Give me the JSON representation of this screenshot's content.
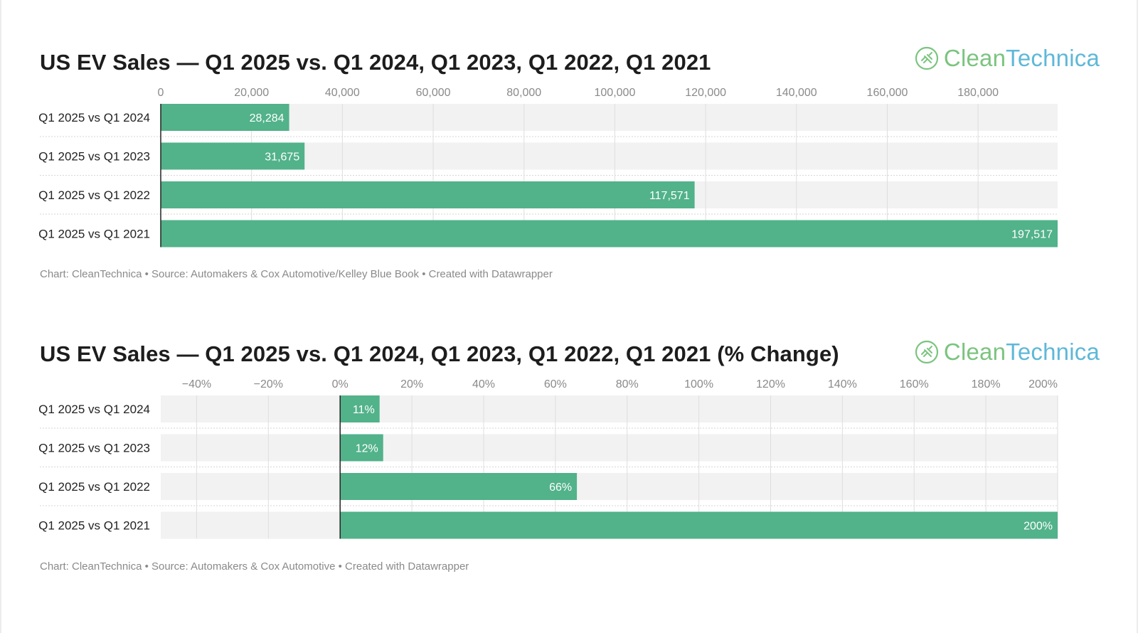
{
  "chart_data": [
    {
      "type": "bar",
      "orientation": "horizontal",
      "title": "US EV Sales — Q1 2025 vs. Q1 2024, Q1 2023, Q1 2022, Q1 2021",
      "categories": [
        "Q1 2025 vs Q1 2024",
        "Q1 2025 vs Q1 2023",
        "Q1 2025 vs Q1 2022",
        "Q1 2025 vs Q1 2021"
      ],
      "values": [
        28284,
        31675,
        117571,
        197517
      ],
      "value_labels": [
        "28,284",
        "31,675",
        "117,571",
        "197,517"
      ],
      "xlim": [
        0,
        197517
      ],
      "xticks": [
        0,
        20000,
        40000,
        60000,
        80000,
        100000,
        120000,
        140000,
        160000,
        180000
      ],
      "xtick_labels": [
        "0",
        "20,000",
        "40,000",
        "60,000",
        "80,000",
        "100,000",
        "120,000",
        "140,000",
        "160,000",
        "180,000"
      ],
      "grid": true,
      "bar_color": "#52b28a",
      "footnote": "Chart: CleanTechnica • Source: Automakers & Cox Automotive/Kelley Blue Book • Created with Datawrapper",
      "logo": {
        "part1": "Clean",
        "part2": "Technica"
      }
    },
    {
      "type": "bar",
      "orientation": "horizontal",
      "title": "US EV Sales — Q1 2025 vs. Q1 2024, Q1 2023, Q1 2022, Q1 2021 (% Change)",
      "categories": [
        "Q1 2025 vs Q1 2024",
        "Q1 2025 vs Q1 2023",
        "Q1 2025 vs Q1 2022",
        "Q1 2025 vs Q1 2021"
      ],
      "values": [
        11,
        12,
        66,
        200
      ],
      "value_labels": [
        "11%",
        "12%",
        "66%",
        "200%"
      ],
      "xlim": [
        -50,
        200
      ],
      "xticks": [
        -40,
        -20,
        0,
        20,
        40,
        60,
        80,
        100,
        120,
        140,
        160,
        180,
        200
      ],
      "xtick_labels": [
        "−40%",
        "−20%",
        "0%",
        "20%",
        "40%",
        "60%",
        "80%",
        "100%",
        "120%",
        "140%",
        "160%",
        "180%",
        "200%"
      ],
      "grid": true,
      "bar_color": "#52b28a",
      "footnote": "Chart: CleanTechnica • Source: Automakers & Cox Automotive • Created with Datawrapper",
      "logo": {
        "part1": "Clean",
        "part2": "Technica"
      }
    }
  ]
}
